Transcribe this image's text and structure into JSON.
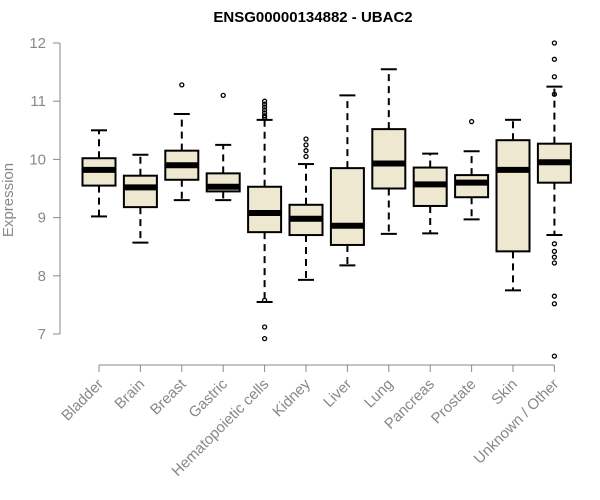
{
  "chart_data": {
    "type": "boxplot",
    "title": "ENSG00000134882 - UBAC2",
    "xlabel": "",
    "ylabel": "Expression",
    "ylim": [
      6.5,
      12.1
    ],
    "yticks": [
      7,
      8,
      9,
      10,
      11,
      12
    ],
    "colors": {
      "box_fill": "#eee8d0",
      "stroke": "#000000",
      "axis": "#888888"
    },
    "categories": [
      "Bladder",
      "Brain",
      "Breast",
      "Gastric",
      "Hematopoietic cells",
      "Kidney",
      "Liver",
      "Lung",
      "Pancreas",
      "Prostate",
      "Skin",
      "Unknown / Other"
    ],
    "boxes": [
      {
        "name": "Bladder",
        "whisker_low": 9.02,
        "q1": 9.55,
        "median": 9.82,
        "q3": 10.02,
        "whisker_high": 10.5,
        "outliers": []
      },
      {
        "name": "Brain",
        "whisker_low": 8.57,
        "q1": 9.18,
        "median": 9.52,
        "q3": 9.72,
        "whisker_high": 10.08,
        "outliers": []
      },
      {
        "name": "Breast",
        "whisker_low": 9.3,
        "q1": 9.65,
        "median": 9.9,
        "q3": 10.15,
        "whisker_high": 10.78,
        "outliers": [
          11.28
        ]
      },
      {
        "name": "Gastric",
        "whisker_low": 9.3,
        "q1": 9.45,
        "median": 9.53,
        "q3": 9.76,
        "whisker_high": 10.25,
        "outliers": [
          11.1
        ]
      },
      {
        "name": "Hematopoietic cells",
        "whisker_low": 7.55,
        "q1": 8.75,
        "median": 9.08,
        "q3": 9.53,
        "whisker_high": 10.68,
        "outliers": [
          11.0,
          10.95,
          10.9,
          10.85,
          10.8,
          10.75,
          10.72,
          7.58,
          7.12,
          6.92
        ]
      },
      {
        "name": "Kidney",
        "whisker_low": 7.93,
        "q1": 8.7,
        "median": 8.98,
        "q3": 9.22,
        "whisker_high": 9.92,
        "outliers": [
          10.35,
          10.25,
          10.15,
          10.05
        ]
      },
      {
        "name": "Liver",
        "whisker_low": 8.18,
        "q1": 8.53,
        "median": 8.86,
        "q3": 9.85,
        "whisker_high": 11.1,
        "outliers": []
      },
      {
        "name": "Lung",
        "whisker_low": 8.72,
        "q1": 9.5,
        "median": 9.93,
        "q3": 10.52,
        "whisker_high": 11.55,
        "outliers": []
      },
      {
        "name": "Pancreas",
        "whisker_low": 8.73,
        "q1": 9.2,
        "median": 9.57,
        "q3": 9.86,
        "whisker_high": 10.1,
        "outliers": []
      },
      {
        "name": "Prostate",
        "whisker_low": 8.97,
        "q1": 9.35,
        "median": 9.6,
        "q3": 9.73,
        "whisker_high": 10.14,
        "outliers": [
          10.65
        ]
      },
      {
        "name": "Skin",
        "whisker_low": 7.75,
        "q1": 8.42,
        "median": 9.82,
        "q3": 10.33,
        "whisker_high": 10.68,
        "outliers": []
      },
      {
        "name": "Unknown / Other",
        "whisker_low": 8.7,
        "q1": 9.6,
        "median": 9.95,
        "q3": 10.27,
        "whisker_high": 11.25,
        "outliers": [
          12.0,
          11.72,
          11.42,
          11.12,
          8.55,
          8.42,
          8.32,
          8.22,
          7.65,
          7.52,
          6.62
        ]
      }
    ]
  }
}
